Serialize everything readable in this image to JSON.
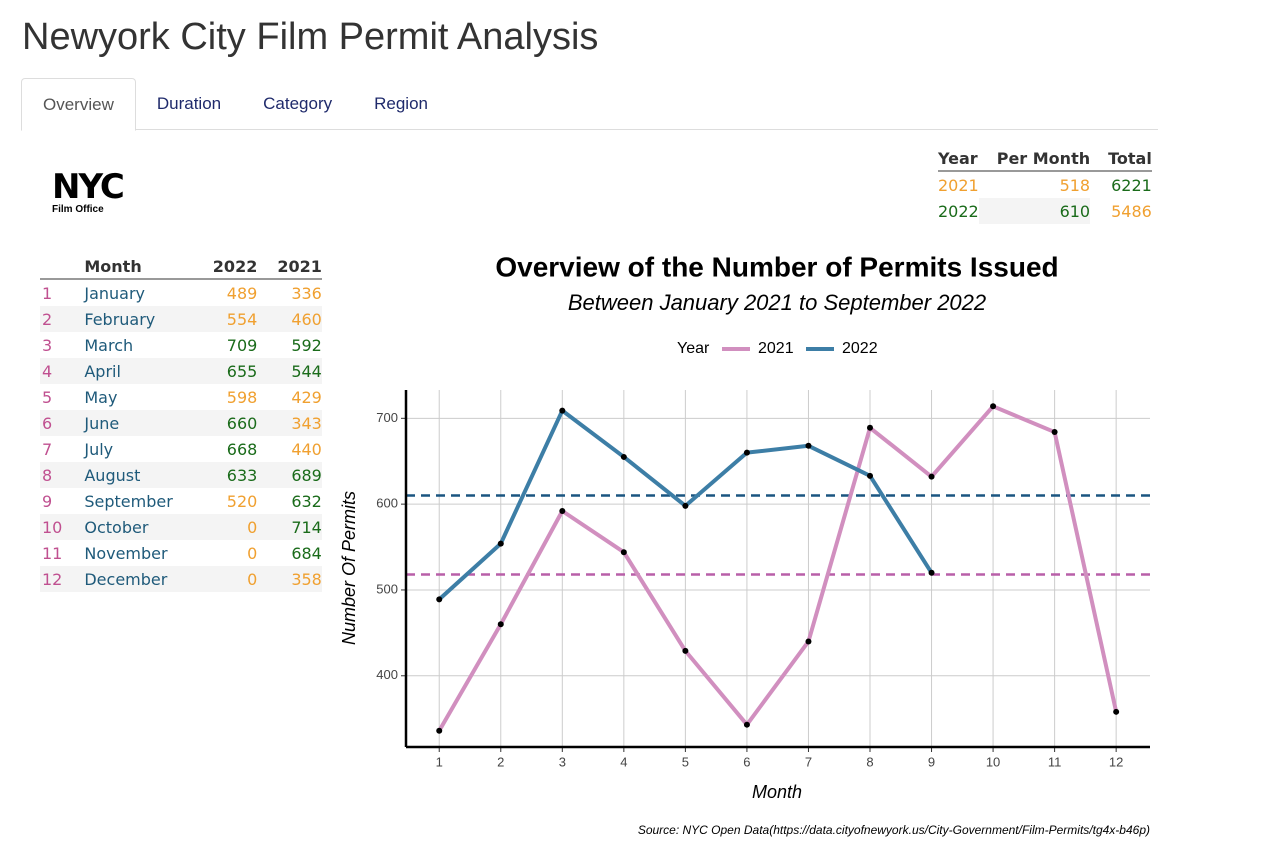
{
  "header": {
    "title": "Newyork City Film Permit Analysis"
  },
  "tabs": [
    "Overview",
    "Duration",
    "Category",
    "Region"
  ],
  "logo": {
    "text": "NYC",
    "subtext": "Film Office"
  },
  "summary_table": {
    "headers": [
      "Year",
      "Per Month",
      "Total"
    ],
    "rows": [
      [
        "2021",
        518,
        6221
      ],
      [
        "2022",
        610,
        5486
      ]
    ]
  },
  "month_table": {
    "headers": [
      "Month",
      "2022",
      "2021"
    ],
    "rows": [
      [
        1,
        "January",
        489,
        336
      ],
      [
        2,
        "February",
        554,
        460
      ],
      [
        3,
        "March",
        709,
        592
      ],
      [
        4,
        "April",
        655,
        544
      ],
      [
        5,
        "May",
        598,
        429
      ],
      [
        6,
        "June",
        660,
        343
      ],
      [
        7,
        "July",
        668,
        440
      ],
      [
        8,
        "August",
        633,
        689
      ],
      [
        9,
        "September",
        520,
        632
      ],
      [
        10,
        "October",
        0,
        714
      ],
      [
        11,
        "November",
        0,
        684
      ],
      [
        12,
        "December",
        0,
        358
      ]
    ]
  },
  "chart_data": {
    "type": "line",
    "title": "Overview of the Number of Permits Issued",
    "subtitle": "Between January 2021 to September 2022",
    "legend_title": "Year",
    "x_label": "Month",
    "y_label": "Number Of Permits",
    "caption": "Source: NYC Open Data(https://data.cityofnewyork.us/City-Government/Film-Permits/tg4x-b46p)",
    "x": [
      1,
      2,
      3,
      4,
      5,
      6,
      7,
      8,
      9,
      10,
      11,
      12
    ],
    "series": [
      {
        "name": "2021",
        "color": "#d18fbf",
        "mean_color": "#b85fa8",
        "values": [
          336,
          460,
          592,
          544,
          429,
          343,
          440,
          689,
          632,
          714,
          684,
          358
        ]
      },
      {
        "name": "2022",
        "color": "#3d7ea6",
        "mean_color": "#1a5580",
        "values": [
          489,
          554,
          709,
          655,
          598,
          660,
          668,
          633,
          520,
          null,
          null,
          null
        ]
      }
    ],
    "xlim": [
      0.46,
      12.55
    ],
    "xticks": [
      1,
      2,
      3,
      4,
      5,
      6,
      7,
      8,
      9,
      10,
      11,
      12
    ],
    "ylim": [
      317,
      733
    ],
    "yticks": [
      400,
      500,
      600,
      700
    ],
    "grid": true
  }
}
